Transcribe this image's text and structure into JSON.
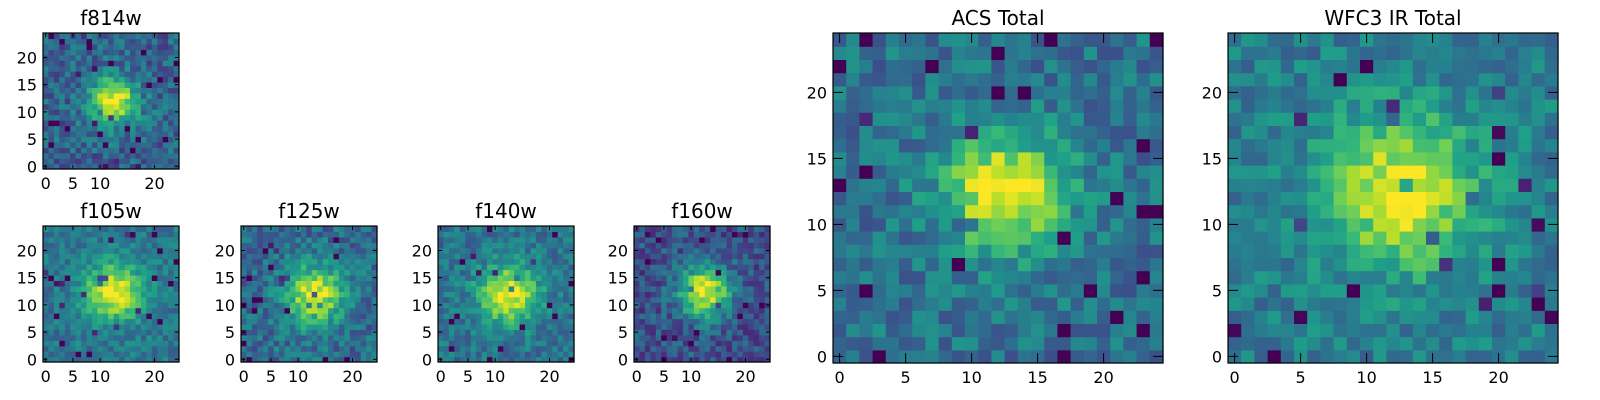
{
  "colormap": {
    "name": "viridis",
    "stops": [
      "#440154",
      "#482878",
      "#3e4989",
      "#31688e",
      "#26828e",
      "#1f9e89",
      "#35b779",
      "#6ece58",
      "#b5de2b",
      "#fde725"
    ]
  },
  "chart_data": [
    {
      "id": "f814w",
      "type": "heatmap",
      "title": "f814w",
      "grid_size": 25,
      "xlim": [
        0,
        24
      ],
      "ylim": [
        0,
        24
      ],
      "x_ticks": [
        0,
        5,
        10,
        20
      ],
      "y_ticks": [
        0,
        5,
        10,
        15,
        20
      ],
      "peak": [
        12.5,
        12
      ],
      "width": 3.0,
      "noise": 0.16,
      "floor": 0.32,
      "amp": 0.68,
      "seed": 11
    },
    {
      "id": "f105w",
      "type": "heatmap",
      "title": "f105w",
      "grid_size": 25,
      "xlim": [
        0,
        24
      ],
      "ylim": [
        0,
        24
      ],
      "x_ticks": [
        0,
        5,
        10,
        20
      ],
      "y_ticks": [
        0,
        5,
        10,
        15,
        20
      ],
      "peak": [
        12.5,
        12.5
      ],
      "width": 3.6,
      "noise": 0.12,
      "floor": 0.4,
      "amp": 0.6,
      "seed": 23
    },
    {
      "id": "f125w",
      "type": "heatmap",
      "title": "f125w",
      "grid_size": 25,
      "xlim": [
        0,
        24
      ],
      "ylim": [
        0,
        24
      ],
      "x_ticks": [
        0,
        5,
        10,
        20
      ],
      "y_ticks": [
        0,
        5,
        10,
        15,
        20
      ],
      "peak": [
        13,
        12
      ],
      "width": 3.8,
      "noise": 0.15,
      "floor": 0.35,
      "amp": 0.6,
      "seed": 37
    },
    {
      "id": "f140w",
      "type": "heatmap",
      "title": "f140w",
      "grid_size": 25,
      "xlim": [
        0,
        24
      ],
      "ylim": [
        0,
        24
      ],
      "x_ticks": [
        0,
        5,
        10,
        20
      ],
      "y_ticks": [
        0,
        5,
        10,
        15,
        20
      ],
      "peak": [
        12.5,
        12
      ],
      "width": 3.8,
      "noise": 0.13,
      "floor": 0.38,
      "amp": 0.6,
      "seed": 41
    },
    {
      "id": "f160w",
      "type": "heatmap",
      "title": "f160w",
      "grid_size": 25,
      "xlim": [
        0,
        24
      ],
      "ylim": [
        0,
        24
      ],
      "x_ticks": [
        0,
        5,
        10,
        20
      ],
      "y_ticks": [
        0,
        5,
        10,
        15,
        20
      ],
      "peak": [
        12.5,
        12.5
      ],
      "width": 3.4,
      "noise": 0.15,
      "floor": 0.25,
      "amp": 0.72,
      "seed": 53
    },
    {
      "id": "acs-total",
      "type": "heatmap",
      "title": "ACS Total",
      "grid_size": 25,
      "xlim": [
        0,
        24
      ],
      "ylim": [
        0,
        24
      ],
      "x_ticks": [
        0,
        5,
        10,
        15,
        20
      ],
      "y_ticks": [
        0,
        5,
        10,
        15,
        20
      ],
      "peak": [
        12.5,
        12.5
      ],
      "width": 3.2,
      "noise": 0.14,
      "floor": 0.38,
      "amp": 0.64,
      "seed": 67
    },
    {
      "id": "wfc3-ir-total",
      "type": "heatmap",
      "title": "WFC3 IR Total",
      "grid_size": 25,
      "xlim": [
        0,
        24
      ],
      "ylim": [
        0,
        24
      ],
      "x_ticks": [
        0,
        5,
        10,
        15,
        20
      ],
      "y_ticks": [
        0,
        5,
        10,
        15,
        20
      ],
      "peak": [
        12.5,
        12.5
      ],
      "width": 4.0,
      "noise": 0.13,
      "floor": 0.42,
      "amp": 0.55,
      "seed": 79
    }
  ]
}
